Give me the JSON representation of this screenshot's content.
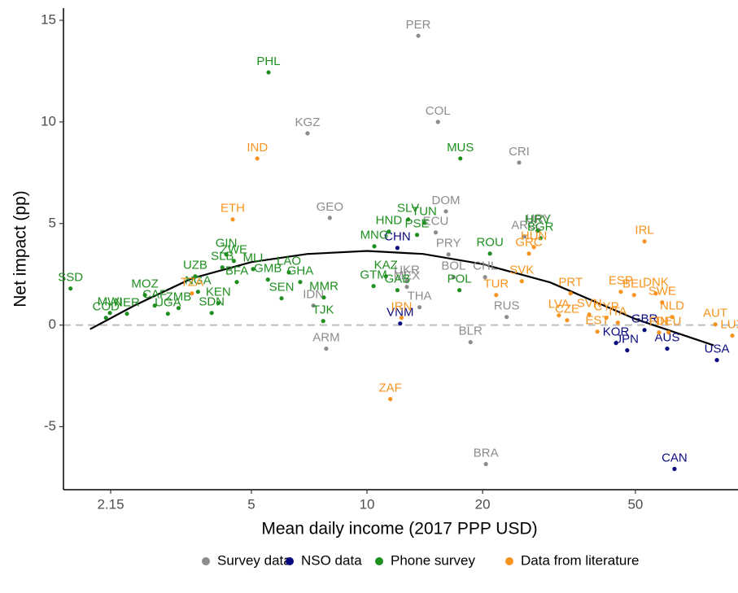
{
  "chart_data": {
    "type": "scatter",
    "x_label": "Mean daily income (2017 PPP USD)",
    "y_label": "Net impact (pp)",
    "x_scale": "log",
    "xlim": [
      1.62,
      92.5
    ],
    "ylim": [
      -8.1,
      15.6
    ],
    "xticks": [
      2.15,
      5,
      10,
      20,
      50
    ],
    "yticks": [
      -5,
      0,
      5,
      10,
      15
    ],
    "reference_line": 0,
    "legend_position": "bottom",
    "series": [
      {
        "name": "Survey data",
        "color": "#8c8c8c",
        "labels": [
          "PER",
          "COL",
          "KGZ",
          "CRI",
          "GEO",
          "DOM",
          "URY",
          "ECU",
          "ARG",
          "PRY",
          "UKR",
          "BOL",
          "CHL",
          "MEX",
          "THA",
          "RUS",
          "IDN",
          "BLR",
          "ARM",
          "BRA"
        ],
        "x": [
          13.6,
          15.3,
          7.0,
          24.9,
          8.0,
          16.05,
          28.0,
          15.1,
          25.7,
          16.3,
          12.7,
          16.8,
          20.3,
          12.7,
          13.7,
          23.1,
          7.25,
          18.6,
          7.83,
          20.4
        ],
        "y": [
          14.24,
          10.0,
          9.44,
          8.0,
          5.28,
          5.6,
          4.68,
          4.56,
          4.36,
          3.48,
          2.16,
          2.36,
          2.36,
          1.88,
          0.88,
          0.4,
          0.96,
          -0.84,
          -1.16,
          -6.84
        ]
      },
      {
        "name": "NSO data",
        "color": "#0a0a80",
        "labels": [
          "CHN",
          "VNM",
          "GBR",
          "KOR",
          "JPN",
          "AUS",
          "USA",
          "CAN"
        ],
        "x": [
          12.0,
          12.2,
          52.8,
          44.5,
          47.6,
          60.5,
          81.5,
          63.2
        ],
        "y": [
          3.8,
          0.08,
          -0.24,
          -0.88,
          -1.24,
          -1.16,
          -1.72,
          -7.08
        ]
      },
      {
        "name": "Phone survey",
        "color": "#1f8f1f",
        "labels": [
          "PHL",
          "MUS",
          "SLV",
          "TUN",
          "HND",
          "PSE",
          "MNG",
          "HRV",
          "ROU",
          "BGR",
          "GIN",
          "ZWE",
          "MLI",
          "UZB",
          "SLB",
          "LAO",
          "GMB",
          "KAZ",
          "GTM",
          "GAB",
          "POL",
          "SSD",
          "MOZ",
          "NGA",
          "BFA",
          "GHA",
          "MWI",
          "CAF",
          "COD",
          "ZMB",
          "KEN",
          "NER",
          "UGA",
          "SDN",
          "SEN",
          "MMR",
          "TJK"
        ],
        "x": [
          5.54,
          17.5,
          12.8,
          14.1,
          11.4,
          13.5,
          10.45,
          27.8,
          20.9,
          28.3,
          4.3,
          4.5,
          5.05,
          3.57,
          4.2,
          6.26,
          5.52,
          11.2,
          10.4,
          12.0,
          17.4,
          1.69,
          2.64,
          3.63,
          4.58,
          6.7,
          2.14,
          2.8,
          2.09,
          3.23,
          4.1,
          2.37,
          3.03,
          3.94,
          5.99,
          7.72,
          7.69
        ],
        "y": [
          12.44,
          8.2,
          5.2,
          5.04,
          4.6,
          4.44,
          3.88,
          4.64,
          3.52,
          4.28,
          3.48,
          3.16,
          2.76,
          2.4,
          2.84,
          2.6,
          2.24,
          2.4,
          1.92,
          1.72,
          1.72,
          1.8,
          1.48,
          1.64,
          2.12,
          2.12,
          0.6,
          0.96,
          0.36,
          0.84,
          1.08,
          0.56,
          0.56,
          0.6,
          1.32,
          1.36,
          0.2
        ]
      },
      {
        "name": "Data from literature",
        "color": "#f7931e",
        "labels": [
          "IND",
          "ETH",
          "TZA",
          "ZAF",
          "IRN",
          "HUN",
          "GRC",
          "IRL",
          "BEL",
          "DNK",
          "ESP",
          "PRT",
          "SVK",
          "TUR",
          "LVA",
          "SVN",
          "CYP",
          "CZE",
          "ITA",
          "EST",
          "SWE",
          "NLD",
          "DEU",
          "FIN",
          "AUT",
          "LUX"
        ],
        "x": [
          5.18,
          4.47,
          3.5,
          11.5,
          12.3,
          27.2,
          26.4,
          52.8,
          49.6,
          56.5,
          45.8,
          33.9,
          25.3,
          21.7,
          31.6,
          37.9,
          42.0,
          33.2,
          45.0,
          39.8,
          58.7,
          62.3,
          61.0,
          57.6,
          80.7,
          89.4
        ],
        "y": [
          8.2,
          5.2,
          1.56,
          -3.64,
          0.36,
          3.84,
          3.52,
          4.12,
          1.48,
          1.56,
          1.64,
          1.56,
          2.16,
          1.48,
          0.48,
          0.52,
          0.36,
          0.24,
          0.12,
          -0.32,
          1.12,
          0.4,
          -0.36,
          -0.36,
          0.04,
          -0.52
        ]
      }
    ],
    "fit": {
      "color": "#000000",
      "x": [
        1.9,
        2.5,
        3.5,
        5,
        7,
        10,
        14,
        20,
        30,
        50,
        80
      ],
      "y": [
        -0.2,
        1.0,
        2.3,
        3.1,
        3.5,
        3.65,
        3.5,
        3.0,
        2.1,
        0.3,
        -1.0
      ]
    }
  }
}
